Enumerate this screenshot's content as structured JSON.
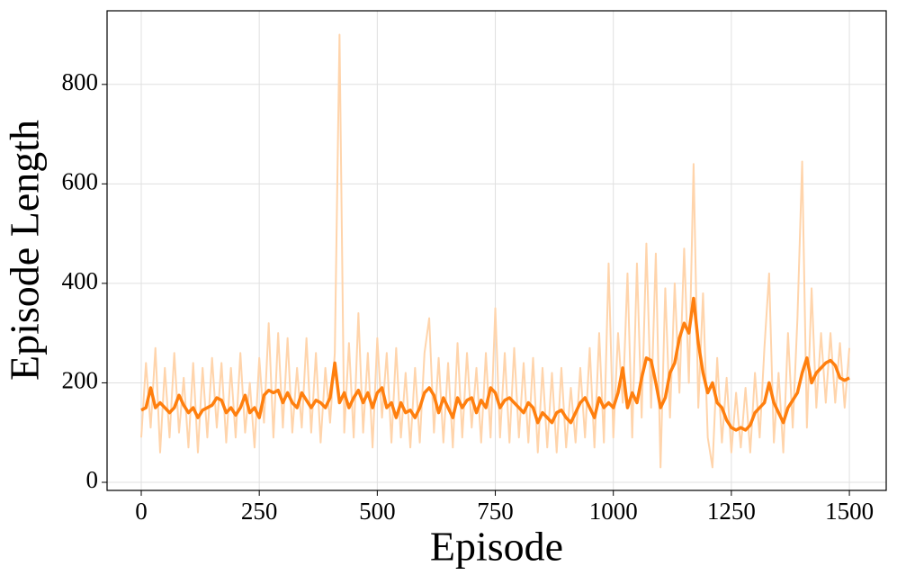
{
  "chart_data": {
    "type": "line",
    "xlabel": "Episode",
    "ylabel": "Episode Length",
    "x": [
      0,
      10,
      20,
      30,
      40,
      50,
      60,
      70,
      80,
      90,
      100,
      110,
      120,
      130,
      140,
      150,
      160,
      170,
      180,
      190,
      200,
      210,
      220,
      230,
      240,
      250,
      260,
      270,
      280,
      290,
      300,
      310,
      320,
      330,
      340,
      350,
      360,
      370,
      380,
      390,
      400,
      410,
      420,
      430,
      440,
      450,
      460,
      470,
      480,
      490,
      500,
      510,
      520,
      530,
      540,
      550,
      560,
      570,
      580,
      590,
      600,
      610,
      620,
      630,
      640,
      650,
      660,
      670,
      680,
      690,
      700,
      710,
      720,
      730,
      740,
      750,
      760,
      770,
      780,
      790,
      800,
      810,
      820,
      830,
      840,
      850,
      860,
      870,
      880,
      890,
      900,
      910,
      920,
      930,
      940,
      950,
      960,
      970,
      980,
      990,
      1000,
      1010,
      1020,
      1030,
      1040,
      1050,
      1060,
      1070,
      1080,
      1090,
      1100,
      1110,
      1120,
      1130,
      1140,
      1150,
      1160,
      1170,
      1180,
      1190,
      1200,
      1210,
      1220,
      1230,
      1240,
      1250,
      1260,
      1270,
      1280,
      1290,
      1300,
      1310,
      1320,
      1330,
      1340,
      1350,
      1360,
      1370,
      1380,
      1390,
      1400,
      1410,
      1420,
      1430,
      1440,
      1450,
      1460,
      1470,
      1480,
      1490,
      1500
    ],
    "series": [
      {
        "color": "#ffd4ab",
        "width": 2,
        "values": [
          90,
          240,
          110,
          270,
          60,
          230,
          90,
          260,
          100,
          210,
          70,
          240,
          60,
          230,
          90,
          250,
          110,
          240,
          80,
          230,
          90,
          260,
          100,
          200,
          70,
          250,
          120,
          320,
          90,
          300,
          110,
          290,
          100,
          230,
          110,
          290,
          100,
          260,
          80,
          230,
          120,
          260,
          900,
          100,
          280,
          90,
          340,
          100,
          260,
          70,
          290,
          130,
          260,
          80,
          270,
          90,
          220,
          70,
          230,
          80,
          260,
          330,
          100,
          250,
          80,
          240,
          70,
          280,
          90,
          260,
          110,
          230,
          80,
          260,
          90,
          350,
          90,
          260,
          80,
          270,
          90,
          240,
          80,
          250,
          60,
          230,
          70,
          220,
          60,
          230,
          70,
          190,
          80,
          230,
          90,
          270,
          70,
          300,
          80,
          440,
          90,
          300,
          160,
          420,
          90,
          440,
          130,
          480,
          150,
          460,
          30,
          390,
          130,
          400,
          180,
          470,
          200,
          640,
          150,
          380,
          90,
          30,
          250,
          80,
          210,
          60,
          180,
          70,
          190,
          60,
          220,
          90,
          270,
          420,
          80,
          220,
          60,
          300,
          110,
          330,
          645,
          110,
          390,
          150,
          300,
          160,
          300,
          160,
          280,
          150,
          270
        ]
      },
      {
        "color": "#ff7f0e",
        "width": 3.5,
        "values": [
          145,
          150,
          190,
          150,
          160,
          150,
          140,
          150,
          175,
          155,
          140,
          150,
          130,
          145,
          150,
          155,
          170,
          165,
          140,
          150,
          135,
          150,
          175,
          140,
          150,
          130,
          175,
          185,
          180,
          185,
          160,
          180,
          160,
          150,
          180,
          165,
          150,
          165,
          160,
          150,
          170,
          240,
          160,
          180,
          150,
          170,
          185,
          160,
          180,
          150,
          180,
          190,
          150,
          160,
          130,
          160,
          140,
          145,
          130,
          150,
          180,
          190,
          175,
          140,
          170,
          150,
          130,
          170,
          150,
          165,
          170,
          140,
          165,
          150,
          190,
          180,
          150,
          165,
          170,
          160,
          150,
          140,
          160,
          150,
          120,
          140,
          130,
          120,
          140,
          145,
          130,
          120,
          140,
          160,
          170,
          150,
          130,
          170,
          150,
          160,
          150,
          180,
          230,
          150,
          180,
          160,
          210,
          250,
          245,
          200,
          150,
          170,
          220,
          240,
          290,
          320,
          300,
          370,
          280,
          220,
          180,
          200,
          160,
          150,
          125,
          110,
          105,
          110,
          105,
          115,
          140,
          150,
          160,
          200,
          160,
          140,
          120,
          150,
          165,
          180,
          220,
          250,
          200,
          220,
          230,
          240,
          245,
          235,
          210,
          205,
          210
        ]
      }
    ],
    "xlim": [
      -72.4,
      1578
    ],
    "ylim": [
      -16.3,
      948
    ],
    "xticks": [
      0,
      250,
      500,
      750,
      1000,
      1250,
      1500
    ],
    "yticks": [
      0,
      200,
      400,
      600,
      800
    ],
    "grid": true
  }
}
